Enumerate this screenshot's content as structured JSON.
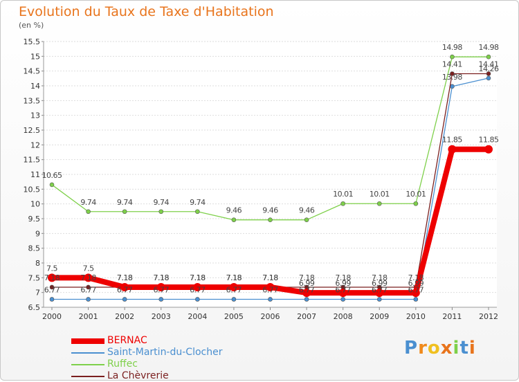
{
  "chart_data": {
    "type": "line",
    "title": "Evolution du Taux de Taxe d'Habitation",
    "unit_label": "(en %)",
    "ylim": [
      6.5,
      15.5
    ],
    "yticks": [
      6.5,
      7,
      7.5,
      8,
      8.5,
      9,
      9.5,
      10,
      10.5,
      11,
      11.5,
      12,
      12.5,
      13,
      13.5,
      14,
      14.5,
      15,
      15.5
    ],
    "categories": [
      "2000",
      "2001",
      "2002",
      "2003",
      "2004",
      "2005",
      "2006",
      "2007",
      "2008",
      "2009",
      "2010",
      "2011",
      "2012"
    ],
    "grid": "horizontal",
    "legend_position": "bottom-left",
    "series": [
      {
        "name": "BERNAC",
        "color": "#ee0000",
        "values": [
          7.5,
          7.5,
          7.18,
          7.18,
          7.18,
          7.18,
          7.18,
          6.99,
          6.99,
          6.99,
          6.99,
          11.85,
          11.85
        ],
        "labels": [
          "7.5",
          "7.5",
          "7.18",
          "7.18",
          "7.18",
          "7.18",
          "7.18",
          "6.99",
          "6.99",
          "6.99",
          "6.99",
          "11.85",
          "11.85"
        ]
      },
      {
        "name": "Saint-Martin-du-Clocher",
        "color": "#4a8fd0",
        "values": [
          6.77,
          6.77,
          6.77,
          6.77,
          6.77,
          6.77,
          6.77,
          6.77,
          6.77,
          6.77,
          6.77,
          13.98,
          14.26
        ],
        "labels": [
          "6.77",
          "6.77",
          "6.77",
          "6.77",
          "6.77",
          "6.77",
          "6.77",
          "6.77",
          "6.77",
          "6.77",
          "6.77",
          "13.98",
          "14.26"
        ]
      },
      {
        "name": "Ruffec",
        "color": "#7ed04a",
        "values": [
          10.65,
          9.74,
          9.74,
          9.74,
          9.74,
          9.46,
          9.46,
          9.46,
          10.01,
          10.01,
          10.01,
          14.98,
          14.98
        ],
        "labels": [
          "10.65",
          "9.74",
          "9.74",
          "9.74",
          "9.74",
          "9.46",
          "9.46",
          "9.46",
          "10.01",
          "10.01",
          "10.01",
          "14.98",
          "14.98"
        ]
      },
      {
        "name": "La Chèvrerie",
        "color": "#7a1f1f",
        "values": [
          7.18,
          7.18,
          7.18,
          7.18,
          7.18,
          7.18,
          7.18,
          7.18,
          7.18,
          7.18,
          7.18,
          14.41,
          14.41
        ],
        "labels": [
          "7.18",
          "7.18",
          "7.18",
          "7.18",
          "7.18",
          "7.18",
          "7.18",
          "7.18",
          "7.18",
          "7.18",
          "7.18",
          "14.41",
          "14.41"
        ]
      }
    ]
  },
  "brand": {
    "logo_text": "Proxiti",
    "letter_colors": [
      "#4a8fd0",
      "#f08a1c",
      "#f0c020",
      "#e8741c",
      "#7ed04a",
      "#4a8fd0",
      "#e8741c"
    ]
  }
}
